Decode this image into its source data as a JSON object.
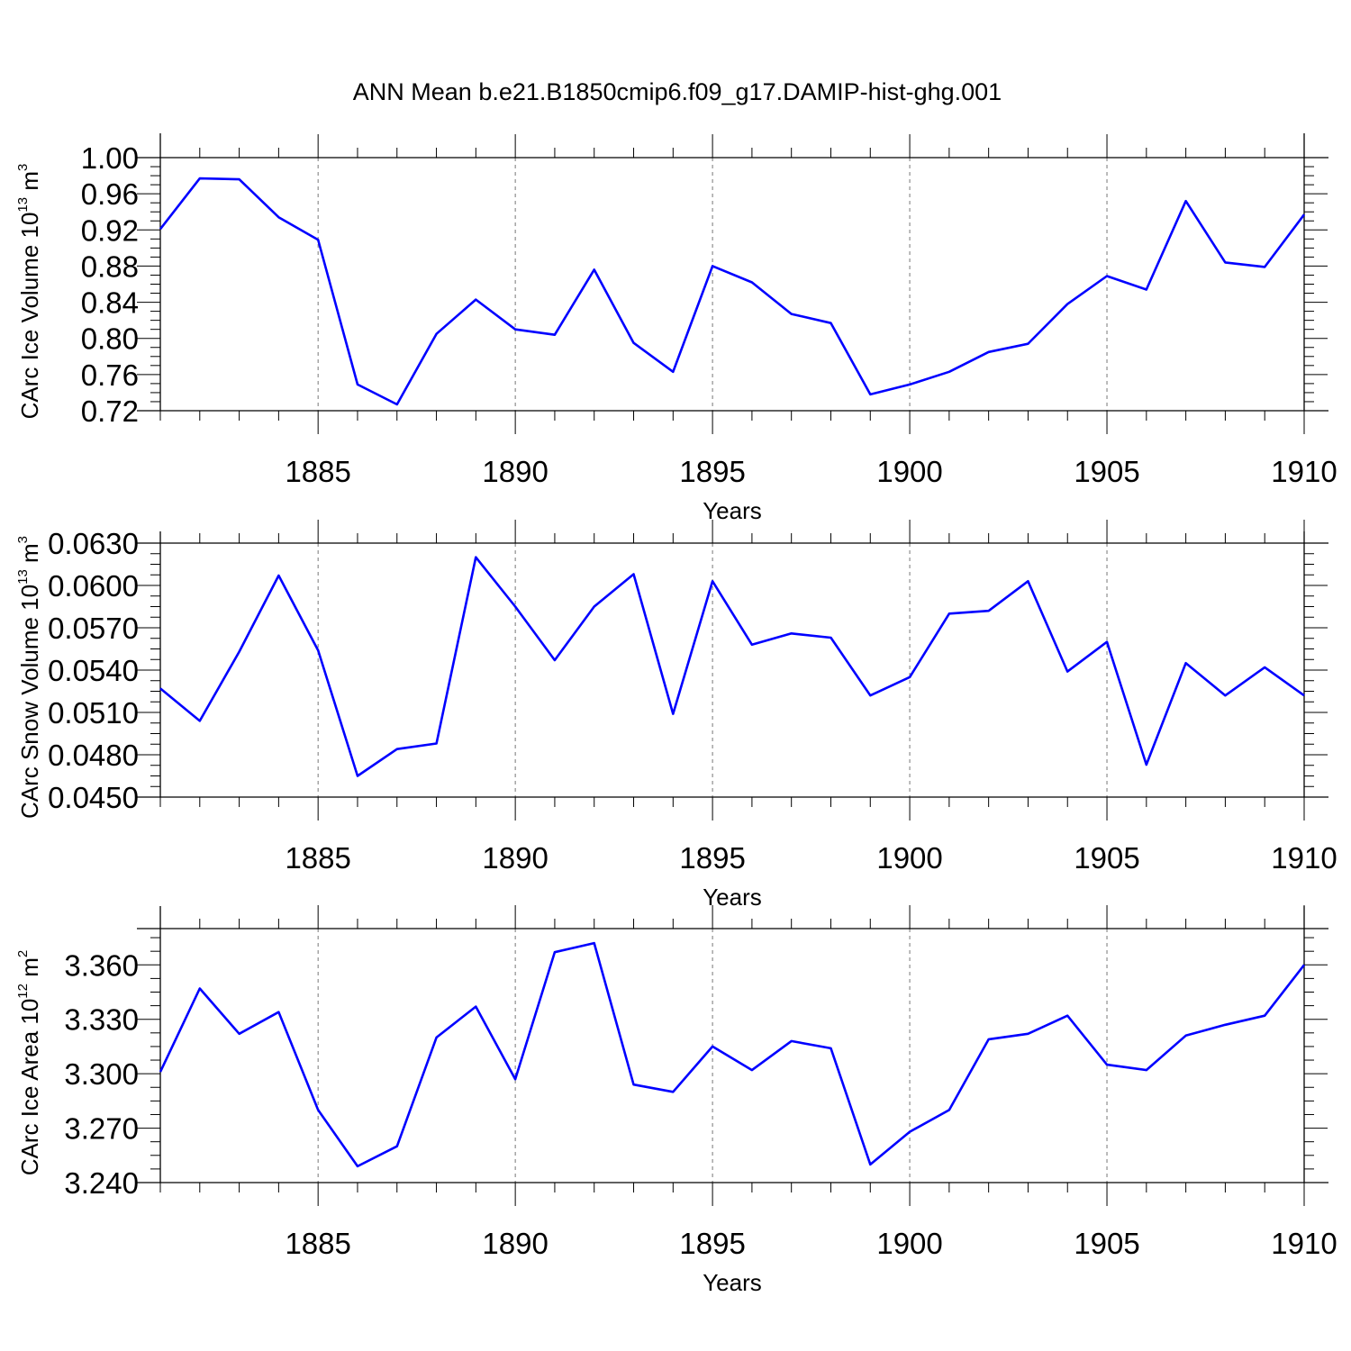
{
  "title": "ANN Mean b.e21.B1850cmip6.f09_g17.DAMIP-hist-ghg.001",
  "colors": {
    "series": "#0000ff",
    "axis": "#000000",
    "grid": "#777777"
  },
  "chart_data": [
    {
      "type": "line",
      "ylabel": "CArc Ice Volume",
      "ylabel_exp": "13",
      "ylabel_unit": "m",
      "ylabel_unit_exp": "3",
      "xlabel": "Years",
      "xlim": [
        1881,
        1910
      ],
      "ylim": [
        0.72,
        1.0
      ],
      "yticks": [
        "1.00",
        "0.96",
        "0.92",
        "0.88",
        "0.84",
        "0.80",
        "0.76",
        "0.72"
      ],
      "xticks": [
        "1885",
        "1890",
        "1895",
        "1900",
        "1905",
        "1910"
      ],
      "grid": "vertical dashed at major x ticks",
      "x": [
        1881,
        1882,
        1883,
        1884,
        1885,
        1886,
        1887,
        1888,
        1889,
        1890,
        1891,
        1892,
        1893,
        1894,
        1895,
        1896,
        1897,
        1898,
        1899,
        1900,
        1901,
        1902,
        1903,
        1904,
        1905,
        1906,
        1907,
        1908,
        1909,
        1910
      ],
      "values": [
        0.921,
        0.977,
        0.976,
        0.934,
        0.909,
        0.749,
        0.727,
        0.805,
        0.843,
        0.81,
        0.804,
        0.876,
        0.795,
        0.763,
        0.88,
        0.862,
        0.827,
        0.817,
        0.738,
        0.749,
        0.763,
        0.785,
        0.794,
        0.838,
        0.869,
        0.854,
        0.952,
        0.884,
        0.879,
        0.937
      ]
    },
    {
      "type": "line",
      "ylabel": "CArc Snow Volume",
      "ylabel_exp": "13",
      "ylabel_unit": "m",
      "ylabel_unit_exp": "3",
      "xlabel": "Years",
      "xlim": [
        1881,
        1910
      ],
      "ylim": [
        0.045,
        0.063
      ],
      "yticks": [
        "0.0630",
        "0.0600",
        "0.0570",
        "0.0540",
        "0.0510",
        "0.0480",
        "0.0450"
      ],
      "xticks": [
        "1885",
        "1890",
        "1895",
        "1900",
        "1905",
        "1910"
      ],
      "grid": "vertical dashed at major x ticks",
      "x": [
        1881,
        1882,
        1883,
        1884,
        1885,
        1886,
        1887,
        1888,
        1889,
        1890,
        1891,
        1892,
        1893,
        1894,
        1895,
        1896,
        1897,
        1898,
        1899,
        1900,
        1901,
        1902,
        1903,
        1904,
        1905,
        1906,
        1907,
        1908,
        1909,
        1910
      ],
      "values": [
        0.0527,
        0.0504,
        0.0553,
        0.0607,
        0.0554,
        0.0465,
        0.0484,
        0.0488,
        0.062,
        0.0585,
        0.0547,
        0.0585,
        0.0608,
        0.0509,
        0.0603,
        0.0558,
        0.0566,
        0.0563,
        0.0522,
        0.0535,
        0.058,
        0.0582,
        0.0603,
        0.0539,
        0.056,
        0.0473,
        0.0545,
        0.0522,
        0.0542,
        0.0522
      ]
    },
    {
      "type": "line",
      "ylabel": "CArc Ice Area",
      "ylabel_exp": "12",
      "ylabel_unit": "m",
      "ylabel_unit_exp": "2",
      "xlabel": "Years",
      "xlim": [
        1881,
        1910
      ],
      "ylim": [
        3.24,
        3.38
      ],
      "yticks": [
        "3.360",
        "3.330",
        "3.300",
        "3.270",
        "3.240"
      ],
      "xticks": [
        "1885",
        "1890",
        "1895",
        "1900",
        "1905",
        "1910"
      ],
      "grid": "vertical dashed at major x ticks",
      "x": [
        1881,
        1882,
        1883,
        1884,
        1885,
        1886,
        1887,
        1888,
        1889,
        1890,
        1891,
        1892,
        1893,
        1894,
        1895,
        1896,
        1897,
        1898,
        1899,
        1900,
        1901,
        1902,
        1903,
        1904,
        1905,
        1906,
        1907,
        1908,
        1909,
        1910
      ],
      "values": [
        3.301,
        3.347,
        3.322,
        3.334,
        3.28,
        3.249,
        3.26,
        3.32,
        3.337,
        3.297,
        3.367,
        3.372,
        3.294,
        3.29,
        3.315,
        3.302,
        3.318,
        3.314,
        3.25,
        3.268,
        3.28,
        3.319,
        3.322,
        3.332,
        3.305,
        3.302,
        3.321,
        3.327,
        3.332,
        3.36
      ]
    }
  ]
}
